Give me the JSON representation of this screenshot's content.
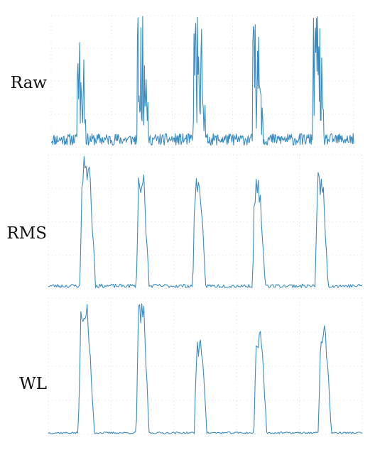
{
  "figure": {
    "line_color": "#3a8cc0",
    "grid_color": "#d7d7d7"
  },
  "chart_data": [
    {
      "type": "line",
      "label": "Raw",
      "title": "",
      "xlabel": "",
      "ylabel": "",
      "grid": true,
      "ylim": [
        0,
        1
      ],
      "bursts": [
        {
          "start": 0.085,
          "end": 0.115,
          "peak": 1.0
        },
        {
          "start": 0.285,
          "end": 0.32,
          "peak": 1.0
        },
        {
          "start": 0.47,
          "end": 0.51,
          "peak": 1.0
        },
        {
          "start": 0.665,
          "end": 0.7,
          "peak": 0.95
        },
        {
          "start": 0.865,
          "end": 0.9,
          "peak": 1.0
        }
      ],
      "baseline": 0.03
    },
    {
      "type": "line",
      "label": "RMS",
      "title": "",
      "xlabel": "",
      "ylabel": "",
      "grid": true,
      "ylim": [
        0,
        1
      ],
      "bursts": [
        {
          "start": 0.1,
          "end": 0.15,
          "peak": 1.0
        },
        {
          "start": 0.28,
          "end": 0.32,
          "peak": 0.88
        },
        {
          "start": 0.46,
          "end": 0.5,
          "peak": 0.85
        },
        {
          "start": 0.65,
          "end": 0.69,
          "peak": 0.82
        },
        {
          "start": 0.85,
          "end": 0.89,
          "peak": 0.88
        }
      ],
      "baseline": 0.02
    },
    {
      "type": "line",
      "label": "WL",
      "title": "",
      "xlabel": "",
      "ylabel": "",
      "grid": true,
      "ylim": [
        0,
        1
      ],
      "bursts": [
        {
          "start": 0.095,
          "end": 0.145,
          "peak": 1.0
        },
        {
          "start": 0.28,
          "end": 0.32,
          "peak": 0.97
        },
        {
          "start": 0.465,
          "end": 0.505,
          "peak": 0.7
        },
        {
          "start": 0.655,
          "end": 0.695,
          "peak": 0.8
        },
        {
          "start": 0.86,
          "end": 0.9,
          "peak": 0.8
        }
      ],
      "baseline": 0.01
    }
  ]
}
